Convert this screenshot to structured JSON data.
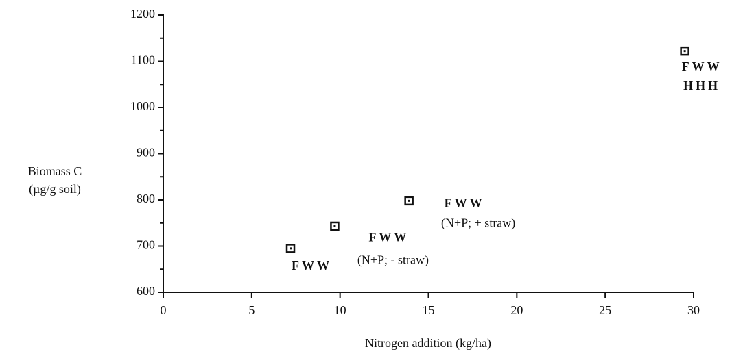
{
  "chart_data": {
    "type": "scatter",
    "x_label": "Nitrogen addition (kg/ha)",
    "y_label": [
      "Biomass C",
      "(µg/g soil)"
    ],
    "x": [
      7.2,
      9.7,
      13.9,
      29.5
    ],
    "values": [
      695,
      743,
      798,
      1122
    ],
    "point_labels": [
      [
        "FWW"
      ],
      [
        "FWW",
        "(N+P; - straw)"
      ],
      [
        "FWW",
        "(N+P; + straw)"
      ],
      [
        "FWW",
        "HHH"
      ]
    ],
    "color": "#111111",
    "xlim": [
      0,
      30
    ],
    "xticks": [
      0,
      5,
      10,
      15,
      20,
      25,
      30
    ],
    "ylim": [
      600,
      1200
    ],
    "yticks": [
      600,
      700,
      800,
      900,
      1000,
      1100,
      1200
    ],
    "yminor": [
      650,
      750,
      850,
      950,
      1050,
      1150
    ]
  }
}
